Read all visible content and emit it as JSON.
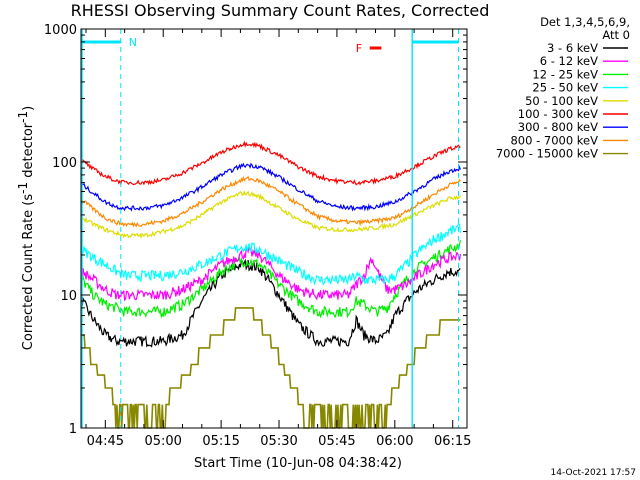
{
  "chart_data": {
    "type": "line",
    "title": "RHESSI Observing Summary Count Rates, Corrected",
    "xlabel": "Start Time (10-Jun-08 04:38:42)",
    "ylabel_main": "Corrected Count Rate (s",
    "ylabel_sup1": "-1",
    "ylabel_mid": " detector",
    "ylabel_sup2": "-1",
    "ylabel_end": ")",
    "y_scale": "log",
    "ylim": [
      1,
      1000
    ],
    "xlim_minutes": [
      38.7,
      138.7
    ],
    "x_tick_labels": [
      "04:45",
      "05:00",
      "05:15",
      "05:30",
      "05:45",
      "06:00",
      "06:15"
    ],
    "x_tick_minutes": [
      45,
      60,
      75,
      90,
      105,
      120,
      135
    ],
    "y_tick_labels": [
      "1",
      "10",
      "100",
      "1000"
    ],
    "y_tick_values": [
      1,
      10,
      100,
      1000
    ],
    "legend_header": [
      "Det 1,3,4,5,6,9,",
      "Att 0"
    ],
    "markers": {
      "night_label": "N",
      "flare_label": "F",
      "night_end_minute": 49.0,
      "night_start_minute": 124.5,
      "saa_end_minute": 136.5,
      "flare_start_minute": 113.5,
      "flare_end_minute": 116.5
    },
    "timestamp": "14-Oct-2021 17:57",
    "series": [
      {
        "name": "3 - 6 keV",
        "color": "#000000",
        "x": [
          39,
          42,
          45,
          48,
          50,
          55,
          60,
          65,
          70,
          75,
          80,
          82,
          85,
          90,
          95,
          100,
          105,
          108,
          110,
          112,
          115,
          118,
          120,
          123,
          126,
          130,
          134,
          137
        ],
        "y": [
          9,
          6.5,
          5,
          4.5,
          4.5,
          4.5,
          4.5,
          5,
          9,
          14,
          17,
          17,
          16,
          10,
          6,
          4.5,
          4.5,
          4.5,
          6.5,
          5,
          4.5,
          5,
          7,
          9,
          11,
          13,
          15,
          15
        ]
      },
      {
        "name": "6 - 12 keV",
        "color": "#ff00ff",
        "x": [
          39,
          42,
          45,
          48,
          50,
          55,
          60,
          65,
          70,
          75,
          80,
          82,
          85,
          90,
          95,
          100,
          105,
          108,
          110,
          112,
          114,
          116,
          118,
          120,
          123,
          126,
          130,
          134,
          137
        ],
        "y": [
          15,
          13,
          11,
          10,
          10,
          10,
          10,
          11,
          13,
          17,
          20,
          21,
          20,
          14,
          11,
          10,
          10,
          10,
          12,
          14,
          19,
          14,
          11,
          11,
          12,
          14,
          17,
          19,
          20
        ]
      },
      {
        "name": "12 - 25 keV",
        "color": "#00ee00",
        "x": [
          39,
          42,
          45,
          48,
          50,
          55,
          60,
          65,
          70,
          75,
          80,
          82,
          85,
          90,
          95,
          100,
          105,
          108,
          110,
          112,
          115,
          118,
          120,
          123,
          126,
          130,
          134,
          137
        ],
        "y": [
          13,
          10,
          8.5,
          8,
          7.5,
          7.5,
          7.5,
          8.5,
          11,
          15,
          18,
          18,
          17,
          12,
          9,
          7.5,
          7.5,
          7.5,
          9,
          8.5,
          7.5,
          8,
          10,
          13,
          16,
          19,
          22,
          24
        ]
      },
      {
        "name": "25 - 50 keV",
        "color": "#00ffff",
        "x": [
          39,
          42,
          45,
          48,
          50,
          55,
          60,
          65,
          70,
          75,
          80,
          82,
          85,
          90,
          95,
          100,
          105,
          108,
          110,
          112,
          115,
          118,
          120,
          123,
          126,
          130,
          134,
          137
        ],
        "y": [
          22,
          19,
          17,
          15,
          14,
          14,
          14,
          15,
          17,
          20,
          23,
          23,
          22,
          18,
          15,
          13,
          13,
          13,
          14,
          13,
          13,
          13,
          14,
          17,
          21,
          26,
          30,
          32
        ]
      },
      {
        "name": "50 - 100 keV",
        "color": "#dddd00",
        "x": [
          39,
          42,
          45,
          48,
          50,
          55,
          60,
          65,
          70,
          75,
          80,
          82,
          85,
          90,
          95,
          100,
          105,
          110,
          115,
          120,
          125,
          130,
          134,
          137
        ],
        "y": [
          38,
          34,
          31,
          29,
          28,
          28,
          30,
          33,
          40,
          50,
          58,
          58,
          55,
          45,
          37,
          32,
          31,
          31,
          32,
          34,
          40,
          47,
          53,
          55
        ]
      },
      {
        "name": "100 - 300 keV",
        "color": "#ff0000",
        "x": [
          39,
          42,
          45,
          48,
          50,
          55,
          60,
          65,
          70,
          75,
          80,
          82,
          85,
          90,
          95,
          100,
          105,
          110,
          115,
          120,
          125,
          130,
          134,
          137
        ],
        "y": [
          102,
          88,
          78,
          72,
          70,
          70,
          73,
          83,
          98,
          118,
          135,
          138,
          132,
          112,
          92,
          78,
          72,
          70,
          72,
          78,
          92,
          110,
          125,
          130
        ]
      },
      {
        "name": "300 - 800 keV",
        "color": "#0000ff",
        "x": [
          39,
          42,
          45,
          48,
          50,
          55,
          60,
          65,
          70,
          75,
          80,
          82,
          85,
          90,
          95,
          100,
          105,
          110,
          115,
          120,
          125,
          130,
          134,
          137
        ],
        "y": [
          68,
          58,
          50,
          46,
          45,
          45,
          47,
          54,
          65,
          80,
          93,
          95,
          92,
          77,
          62,
          51,
          46,
          45,
          46,
          50,
          60,
          74,
          85,
          90
        ]
      },
      {
        "name": "800 - 7000 keV",
        "color": "#ff8800",
        "x": [
          39,
          42,
          45,
          48,
          50,
          55,
          60,
          65,
          70,
          75,
          80,
          82,
          85,
          90,
          95,
          100,
          105,
          110,
          115,
          120,
          125,
          130,
          134,
          137
        ],
        "y": [
          52,
          44,
          38,
          35,
          34,
          34,
          36,
          41,
          50,
          62,
          73,
          75,
          72,
          60,
          48,
          39,
          36,
          35,
          36,
          38,
          46,
          57,
          67,
          72
        ]
      },
      {
        "name": "7000 - 15000 keV",
        "color": "#888800",
        "x": [
          39,
          42,
          44,
          46,
          48,
          50,
          52,
          55,
          58,
          60,
          63,
          66,
          68,
          70,
          72,
          75,
          78,
          80,
          82,
          84,
          86,
          88,
          90,
          92,
          94,
          96,
          98,
          100,
          102,
          104,
          106,
          108,
          110,
          112,
          115,
          118,
          120,
          122,
          124,
          126,
          128,
          130,
          132,
          134,
          137
        ],
        "y": [
          5,
          3,
          2.5,
          2,
          1.5,
          1.5,
          1.5,
          1.5,
          1.5,
          1.5,
          2,
          2.5,
          3,
          4,
          4.5,
          5.5,
          7,
          8,
          8,
          7,
          5.5,
          4.5,
          3.5,
          2.5,
          2,
          1.5,
          1.5,
          1.5,
          1.5,
          1.5,
          1.5,
          1.5,
          1.5,
          1.5,
          1.5,
          1.5,
          2,
          2.5,
          3,
          4,
          4.5,
          5,
          6,
          6.5,
          6.5
        ]
      }
    ]
  }
}
